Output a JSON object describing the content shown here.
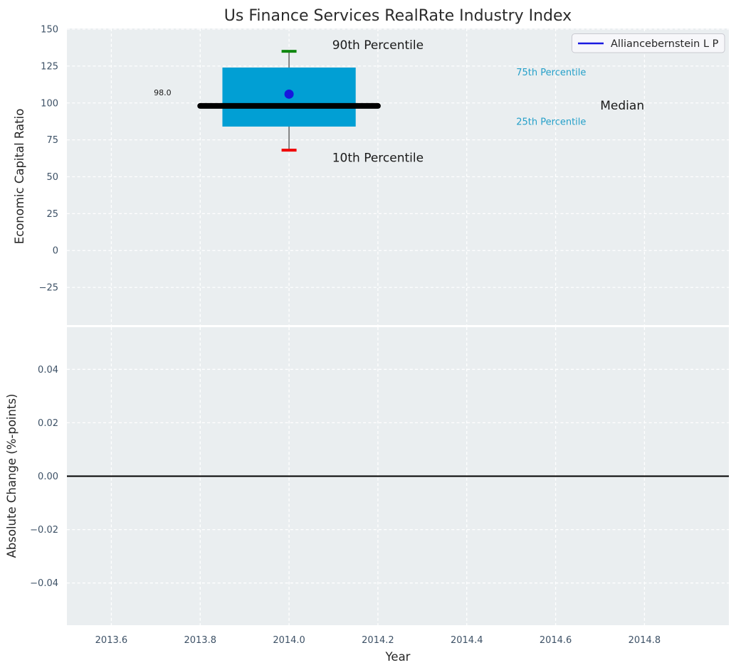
{
  "chart_data": [
    {
      "type": "boxplot",
      "title": "Us Finance Services RealRate Industry Index",
      "xlabel": "",
      "ylabel": "Economic Capital Ratio",
      "xlim": [
        2013.5,
        2014.99
      ],
      "ylim": [
        -50.5,
        150.5
      ],
      "grid": "white-dashed",
      "legend": {
        "position": "upper right",
        "entries": [
          {
            "label": "Alliancebernstein L P",
            "color": "#1a1ae0"
          }
        ]
      },
      "xticks": [
        {
          "v": 2013.6,
          "label": "2013.6"
        },
        {
          "v": 2013.8,
          "label": "2013.8"
        },
        {
          "v": 2014.0,
          "label": "2014.0"
        },
        {
          "v": 2014.2,
          "label": "2014.2"
        },
        {
          "v": 2014.4,
          "label": "2014.4"
        },
        {
          "v": 2014.6,
          "label": "2014.6"
        },
        {
          "v": 2014.8,
          "label": "2014.8"
        }
      ],
      "yticks": [
        {
          "v": 150,
          "label": "150"
        },
        {
          "v": 125,
          "label": "125"
        },
        {
          "v": 100,
          "label": "100"
        },
        {
          "v": 75,
          "label": "75"
        },
        {
          "v": 50,
          "label": "50"
        },
        {
          "v": 25,
          "label": "25"
        },
        {
          "v": 0,
          "label": "0"
        },
        {
          "v": -25,
          "label": "−25"
        }
      ],
      "series": [
        {
          "name": "Alliancebernstein L P",
          "x": 2014.0,
          "box_width_years": 0.3,
          "median_line_width_years": 0.4,
          "p10": 68,
          "q1": 84,
          "median": 98,
          "q3": 124,
          "p90": 135,
          "mean": 106,
          "median_label": "98.0"
        }
      ],
      "annotations": [
        {
          "id": "90th-percentile",
          "text": "90th Percentile",
          "x": 2014.2,
          "y": 139.5,
          "size": 17,
          "color": "#1a1a1a",
          "anchor": "middle"
        },
        {
          "id": "10th-percentile",
          "text": "10th Percentile",
          "x": 2014.2,
          "y": 63,
          "size": 17,
          "color": "#1a1a1a",
          "anchor": "middle"
        },
        {
          "id": "75th-percentile",
          "text": "75th Percentile",
          "x": 2014.59,
          "y": 121,
          "size": 13,
          "color": "#25a0c9",
          "anchor": "middle"
        },
        {
          "id": "25th-percentile",
          "text": "25th Percentile",
          "x": 2014.59,
          "y": 87.5,
          "size": 13,
          "color": "#25a0c9",
          "anchor": "middle"
        },
        {
          "id": "median-label",
          "text": "Median",
          "x": 2014.75,
          "y": 98.5,
          "size": 17,
          "color": "#1a1a1a",
          "anchor": "middle"
        },
        {
          "id": "median-value",
          "text": "98.0",
          "x": 2013.735,
          "y": 107,
          "size": 11,
          "color": "#1a1a1a",
          "anchor": "end"
        }
      ]
    },
    {
      "type": "line",
      "title": "",
      "xlabel": "Year",
      "ylabel": "Absolute Change (%-points)",
      "xlim": [
        2013.5,
        2014.99
      ],
      "ylim": [
        -0.0558,
        0.0558
      ],
      "grid": "white-dashed",
      "zero_line": 0.0,
      "xticks": [
        {
          "v": 2013.6,
          "label": "2013.6"
        },
        {
          "v": 2013.8,
          "label": "2013.8"
        },
        {
          "v": 2014.0,
          "label": "2014.0"
        },
        {
          "v": 2014.2,
          "label": "2014.2"
        },
        {
          "v": 2014.4,
          "label": "2014.4"
        },
        {
          "v": 2014.6,
          "label": "2014.6"
        },
        {
          "v": 2014.8,
          "label": "2014.8"
        }
      ],
      "yticks": [
        {
          "v": 0.04,
          "label": "0.04"
        },
        {
          "v": 0.02,
          "label": "0.02"
        },
        {
          "v": 0.0,
          "label": "0.00"
        },
        {
          "v": -0.02,
          "label": "−0.02"
        },
        {
          "v": -0.04,
          "label": "−0.04"
        }
      ],
      "series": []
    }
  ],
  "colors": {
    "figure_bg": "#ffffff",
    "axes_bg": "#eaeef0",
    "grid": "#ffffff",
    "tick_label": "#3d5166",
    "text": "#262626",
    "title": "#2b2b2b",
    "box_fill": "#019fd4",
    "median_line": "#000000",
    "whisker": "#7a7a7a",
    "cap_upper": "#0f870f",
    "cap_lower": "#f00000",
    "mean_marker": "#1717dd",
    "legend_bg": "#f7f7fa",
    "legend_border": "#c9c9d0",
    "zero_line": "#000000"
  }
}
